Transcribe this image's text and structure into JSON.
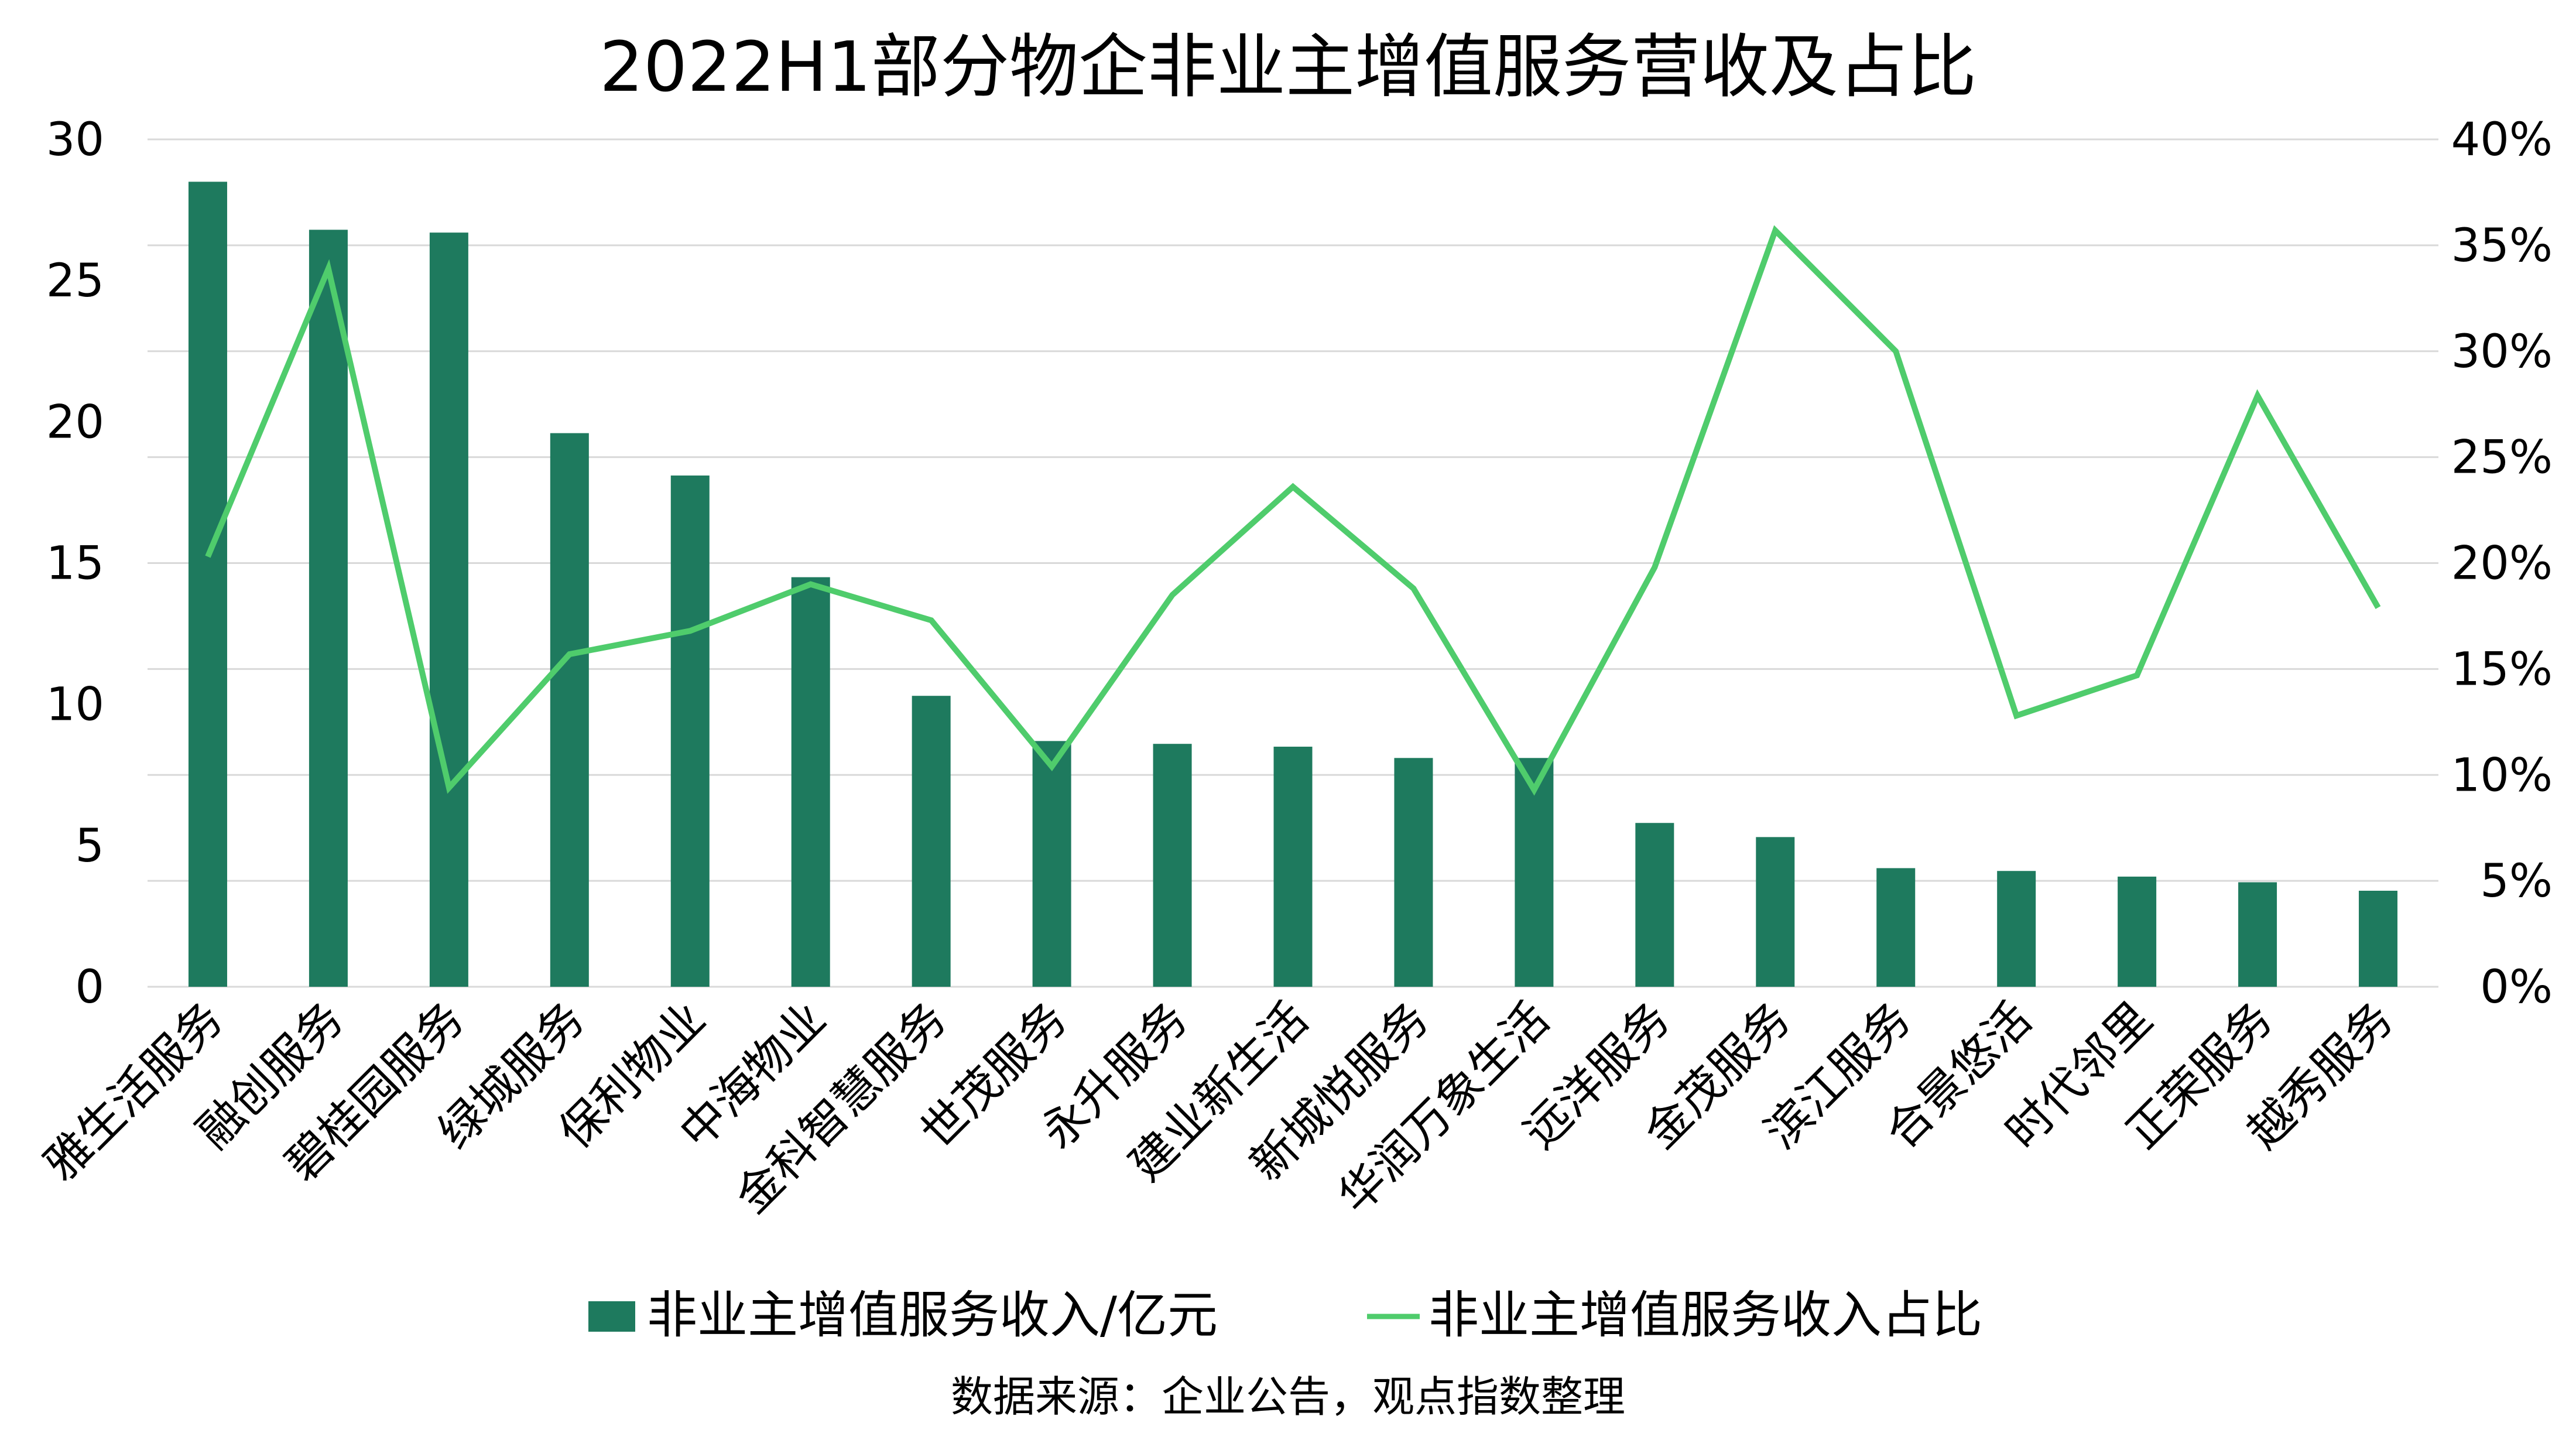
{
  "colors": {
    "bar": "#1e7a5e",
    "line": "#4fcc6c",
    "grid": "#d9d9d9",
    "background": "#ffffff"
  },
  "chart_data": {
    "type": "bar+line",
    "title": "2022H1部分物企非业主增值服务营收及占比",
    "categories": [
      "雅生活服务",
      "融创服务",
      "碧桂园服务",
      "绿城服务",
      "保利物业",
      "中海物业",
      "金科智慧服务",
      "世茂服务",
      "永升服务",
      "建业新生活",
      "新城悦服务",
      "华润万象生活",
      "远洋服务",
      "金茂服务",
      "滨江服务",
      "合景悠活",
      "时代邻里",
      "正荣服务",
      "越秀服务"
    ],
    "series": [
      {
        "name": "非业主增值服务收入/亿元",
        "type": "bar",
        "axis": "left",
        "values": [
          28.5,
          26.8,
          26.7,
          19.6,
          18.1,
          14.5,
          10.3,
          8.7,
          8.6,
          8.5,
          8.1,
          8.1,
          5.8,
          5.3,
          4.2,
          4.1,
          3.9,
          3.7,
          3.4
        ]
      },
      {
        "name": "非业主增值服务收入占比",
        "type": "line",
        "axis": "right",
        "values": [
          0.203,
          0.339,
          0.094,
          0.157,
          0.168,
          0.19,
          0.173,
          0.104,
          0.185,
          0.236,
          0.188,
          0.093,
          0.198,
          0.357,
          0.3,
          0.128,
          0.147,
          0.279,
          0.179
        ]
      }
    ],
    "y_left": {
      "min": 0,
      "max": 30,
      "ticks": [
        "0",
        "5",
        "10",
        "15",
        "20",
        "25",
        "30"
      ]
    },
    "y_right": {
      "min": 0,
      "max": 0.4,
      "ticks": [
        "0%",
        "5%",
        "10%",
        "15%",
        "20%",
        "25%",
        "30%",
        "35%",
        "40%"
      ]
    },
    "grid": true,
    "legend_position": "bottom",
    "source_note": "数据来源：企业公告，观点指数整理"
  }
}
